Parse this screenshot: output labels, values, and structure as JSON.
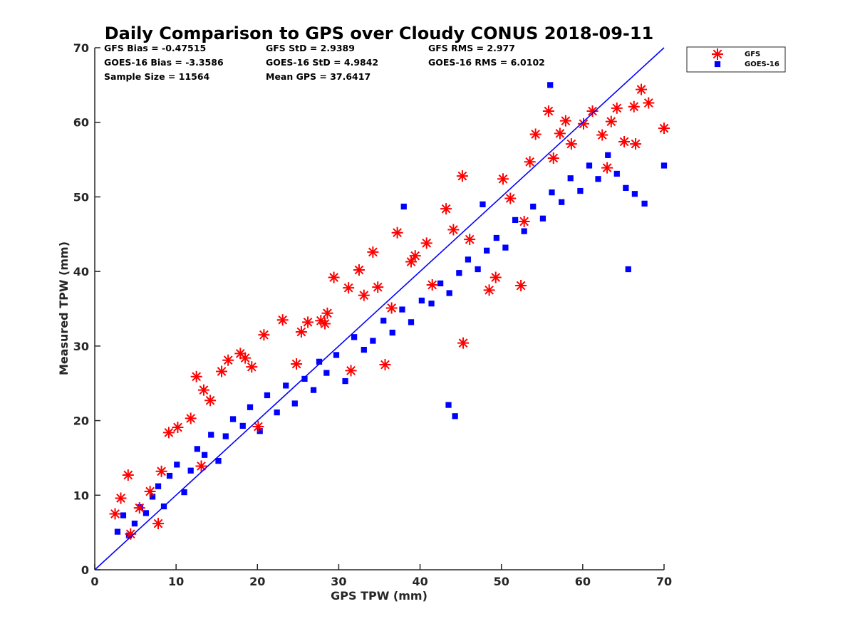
{
  "chart_data": {
    "type": "scatter",
    "title": "Daily Comparison to GPS over Cloudy CONUS 2018-09-11",
    "xlabel": "GPS TPW (mm)",
    "ylabel": "Measured TPW (mm)",
    "xlim": [
      0,
      70
    ],
    "ylim": [
      0,
      70
    ],
    "xticks": [
      "0",
      "10",
      "20",
      "30",
      "40",
      "50",
      "60",
      "70"
    ],
    "yticks": [
      "0",
      "10",
      "20",
      "30",
      "40",
      "50",
      "60",
      "70"
    ],
    "grid": false,
    "legend_position": "outside-top-right",
    "reference_line": {
      "x": [
        0,
        70
      ],
      "y": [
        0,
        70
      ],
      "color": "#0000ff"
    },
    "stats": [
      [
        "GFS Bias = -0.47515",
        "GFS StD = 2.9389",
        "GFS RMS = 2.977"
      ],
      [
        "GOES-16 Bias = -3.3586",
        "GOES-16 StD = 4.9842",
        "GOES-16 RMS = 6.0102"
      ],
      [
        "Sample Size = 11564",
        "Mean GPS = 37.6417",
        ""
      ]
    ],
    "series": [
      {
        "name": "GFS",
        "marker": "asterisk",
        "color": "#ff0000",
        "x": [
          2.5,
          3.2,
          4.1,
          5.5,
          6.8,
          8.2,
          9.1,
          10.2,
          11.8,
          12.5,
          13.4,
          14.2,
          15.6,
          16.4,
          17.9,
          18.5,
          19.3,
          20.8,
          23.1,
          25.4,
          26.2,
          27.8,
          28.6,
          29.4,
          31.2,
          32.5,
          33.1,
          34.2,
          34.8,
          36.5,
          37.2,
          39.4,
          40.8,
          41.5,
          43.2,
          44.1,
          45.2,
          46.1,
          48.5,
          49.3,
          50.2,
          51.1,
          52.4,
          53.5,
          54.2,
          55.8,
          56.4,
          57.9,
          58.6,
          60.1,
          61.2,
          62.4,
          63.5,
          64.2,
          65.1,
          66.3,
          67.2,
          68.1,
          70.0,
          45.3,
          31.5,
          24.8,
          13.1,
          4.4,
          7.8,
          20.1,
          28.3,
          35.7,
          38.9,
          57.2,
          63.0,
          66.5,
          52.8
        ],
        "y": [
          7.5,
          9.6,
          12.7,
          8.3,
          10.5,
          13.2,
          18.4,
          19.1,
          20.3,
          25.9,
          24.1,
          22.7,
          26.6,
          28.1,
          29.0,
          28.4,
          27.2,
          31.5,
          33.5,
          31.9,
          33.2,
          33.4,
          34.4,
          39.2,
          37.8,
          40.2,
          36.8,
          42.6,
          37.9,
          35.1,
          45.2,
          42.1,
          43.8,
          38.2,
          48.4,
          45.6,
          52.8,
          44.3,
          37.5,
          39.2,
          52.4,
          49.8,
          38.1,
          54.7,
          58.4,
          61.5,
          55.2,
          60.2,
          57.1,
          59.8,
          61.5,
          58.3,
          60.1,
          61.9,
          57.4,
          62.1,
          64.4,
          62.6,
          59.2,
          30.4,
          26.7,
          27.6,
          13.9,
          4.8,
          6.2,
          19.2,
          33.0,
          27.5,
          41.3,
          58.5,
          53.9,
          57.1,
          46.7
        ]
      },
      {
        "name": "GOES-16",
        "marker": "square",
        "color": "#0000ff",
        "x": [
          2.8,
          3.5,
          4.2,
          4.9,
          5.6,
          6.3,
          7.1,
          7.8,
          8.5,
          9.2,
          10.1,
          11.0,
          11.8,
          12.6,
          13.5,
          14.3,
          15.2,
          16.1,
          17.0,
          18.2,
          19.1,
          20.3,
          21.2,
          22.4,
          23.5,
          24.6,
          25.8,
          26.9,
          27.6,
          28.5,
          29.7,
          30.8,
          31.9,
          33.1,
          34.2,
          35.5,
          36.6,
          37.8,
          38.9,
          40.2,
          41.4,
          42.5,
          43.6,
          44.8,
          45.9,
          47.1,
          48.2,
          49.4,
          50.5,
          51.7,
          52.8,
          53.9,
          55.1,
          56.2,
          57.4,
          58.5,
          59.7,
          60.8,
          61.9,
          63.1,
          64.2,
          65.3,
          66.4,
          67.6,
          70.0,
          65.6,
          43.5,
          38.0,
          44.3,
          47.7,
          56.0
        ],
        "y": [
          5.1,
          7.3,
          4.6,
          6.2,
          8.4,
          7.6,
          9.8,
          11.2,
          8.5,
          12.6,
          14.1,
          10.4,
          13.3,
          16.2,
          15.4,
          18.1,
          14.6,
          17.9,
          20.2,
          19.3,
          21.8,
          18.6,
          23.4,
          21.1,
          24.7,
          22.3,
          25.6,
          24.1,
          27.9,
          26.4,
          28.8,
          25.3,
          31.2,
          29.5,
          30.7,
          33.4,
          31.8,
          34.9,
          33.2,
          36.1,
          35.7,
          38.4,
          37.1,
          39.8,
          41.6,
          40.3,
          42.8,
          44.5,
          43.2,
          46.9,
          45.4,
          48.7,
          47.1,
          50.6,
          49.3,
          52.5,
          50.8,
          54.2,
          52.4,
          55.6,
          53.1,
          51.2,
          50.4,
          49.1,
          54.2,
          40.3,
          22.1,
          48.7,
          20.6,
          49.0,
          65.0
        ]
      }
    ]
  }
}
